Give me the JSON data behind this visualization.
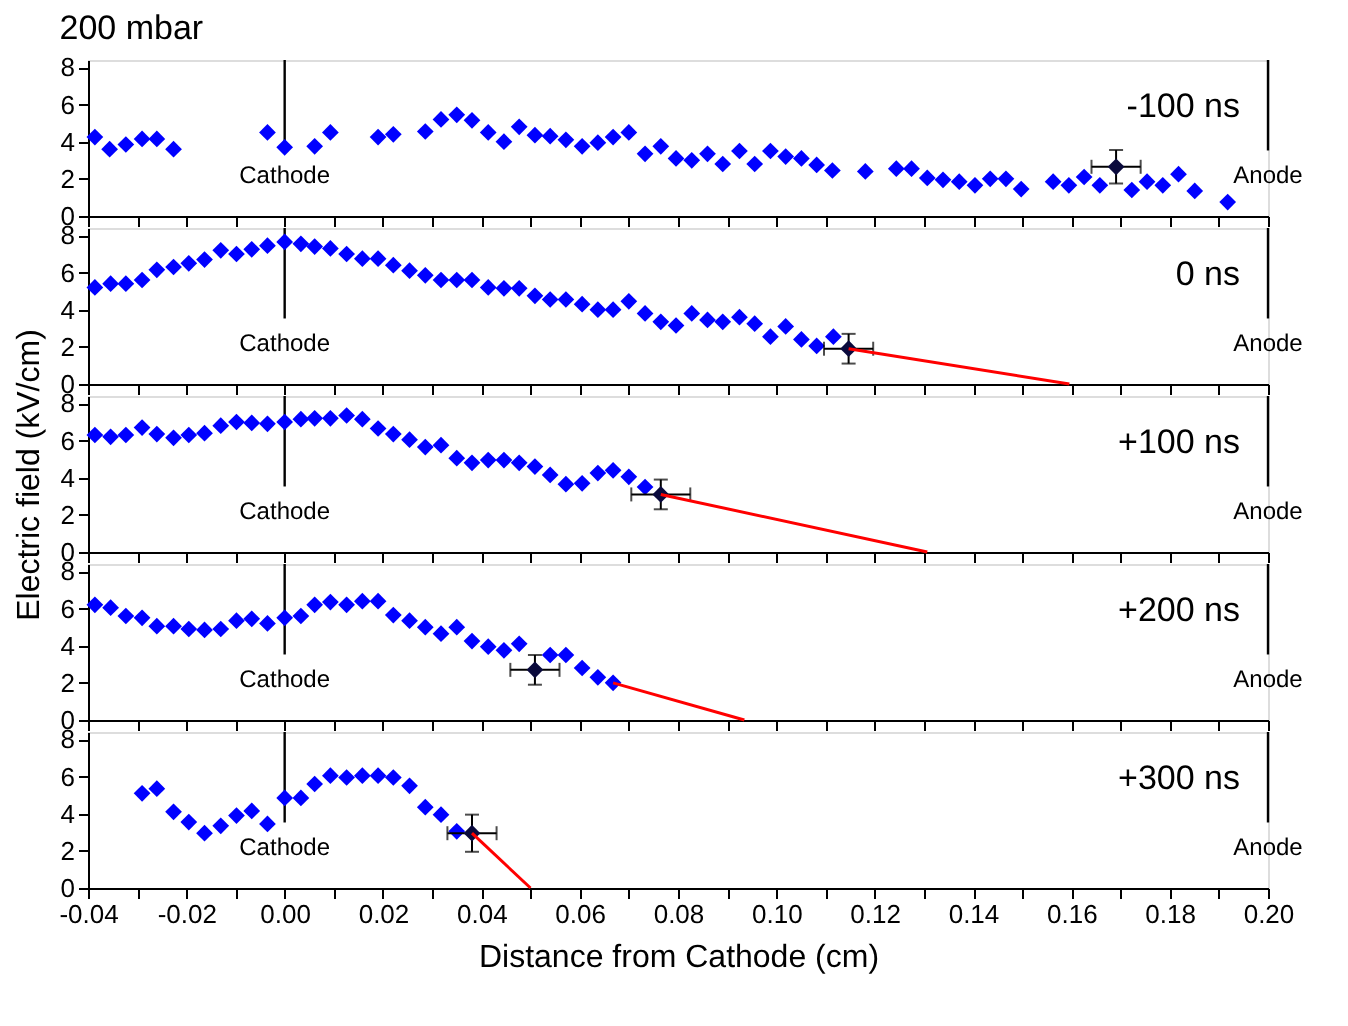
{
  "chart_data": [
    {
      "type": "scatter",
      "title": "200 mbar",
      "annotations": [
        "-100 ns"
      ],
      "tick_labels": "y",
      "xlim": [
        -0.04,
        0.2
      ],
      "ylim": [
        0,
        8.4
      ],
      "yticks": [
        0,
        2,
        4,
        6,
        8
      ],
      "xticks": [
        {
          "value": -0.04,
          "label": null
        },
        {
          "value": -0.03,
          "label": null
        },
        {
          "value": -0.02,
          "label": null
        },
        {
          "value": -0.01,
          "label": null
        },
        {
          "value": 0,
          "label": null
        },
        {
          "value": 0.01,
          "label": null
        },
        {
          "value": 0.02,
          "label": null
        },
        {
          "value": 0.03,
          "label": null
        },
        {
          "value": 0.04,
          "label": null
        },
        {
          "value": 0.05,
          "label": null
        },
        {
          "value": 0.06,
          "label": null
        },
        {
          "value": 0.07,
          "label": null
        },
        {
          "value": 0.08,
          "label": null
        },
        {
          "value": 0.09,
          "label": null
        },
        {
          "value": 0.1,
          "label": null
        },
        {
          "value": 0.11,
          "label": null
        },
        {
          "value": 0.12,
          "label": null
        },
        {
          "value": 0.13,
          "label": null
        },
        {
          "value": 0.14,
          "label": null
        },
        {
          "value": 0.15,
          "label": null
        },
        {
          "value": 0.16,
          "label": null
        },
        {
          "value": 0.17,
          "label": null
        },
        {
          "value": 0.18,
          "label": null
        },
        {
          "value": 0.19,
          "label": null
        },
        {
          "value": 0.2,
          "label": null
        }
      ],
      "ref_lines": [
        {
          "axis": "x",
          "value": 0,
          "label": "Cathode",
          "color": "#000000"
        },
        {
          "axis": "x",
          "value": 0.2,
          "label": "Anode",
          "color": "#000000"
        }
      ],
      "series": [
        {
          "color": "#0000ff",
          "marker": "diamond",
          "x": [
            -0.0386,
            -0.0356,
            -0.0323,
            -0.029,
            -0.026,
            -0.0226,
            -0.0035,
            0.0,
            0.0061,
            0.0093,
            0.019,
            0.0221,
            0.0286,
            0.0318,
            0.035,
            0.0381,
            0.0414,
            0.0446,
            0.0477,
            0.0509,
            0.054,
            0.0572,
            0.0605,
            0.0637,
            0.0668,
            0.07,
            0.0733,
            0.0765,
            0.0796,
            0.0828,
            0.086,
            0.0891,
            0.0925,
            0.0956,
            0.0988,
            0.1019,
            0.1051,
            0.1082,
            0.1114,
            0.1181,
            0.1244,
            0.1275,
            0.1307,
            0.1339,
            0.1372,
            0.1404,
            0.1435,
            0.1467,
            0.1498,
            0.1563,
            0.1595,
            0.1626,
            0.1658,
            0.1723,
            0.1754,
            0.1786,
            0.1818,
            0.1851,
            0.1918
          ],
          "values": [
            4.25,
            3.6,
            3.85,
            4.15,
            4.15,
            3.6,
            4.5,
            3.7,
            3.75,
            4.5,
            4.25,
            4.4,
            4.55,
            5.2,
            5.45,
            5.15,
            4.5,
            4.0,
            4.8,
            4.35,
            4.3,
            4.1,
            3.75,
            3.95,
            4.25,
            4.5,
            3.35,
            3.75,
            3.1,
            3.0,
            3.35,
            2.8,
            3.5,
            2.8,
            3.5,
            3.2,
            3.1,
            2.75,
            2.45,
            2.4,
            2.55,
            2.55,
            2.05,
            1.95,
            1.85,
            1.65,
            2.0,
            2.0,
            1.45,
            1.85,
            1.65,
            2.1,
            1.65,
            1.4,
            1.85,
            1.65,
            2.25,
            1.35,
            0.75
          ]
        },
        {
          "color": "#0a0a3c",
          "marker": "diamond",
          "x": [
            0.1691
          ],
          "values": [
            2.65
          ],
          "errors": [
            0.9
          ],
          "xerrors": [
            0.005
          ]
        }
      ]
    },
    {
      "type": "scatter",
      "annotations": [
        "0 ns"
      ],
      "tick_labels": "y",
      "xlim": [
        -0.04,
        0.2
      ],
      "ylim": [
        0,
        8.4
      ],
      "yticks": [
        0,
        2,
        4,
        6,
        8
      ],
      "xticks": [
        {
          "value": -0.04,
          "label": null
        },
        {
          "value": -0.03,
          "label": null
        },
        {
          "value": -0.02,
          "label": null
        },
        {
          "value": -0.01,
          "label": null
        },
        {
          "value": 0,
          "label": null
        },
        {
          "value": 0.01,
          "label": null
        },
        {
          "value": 0.02,
          "label": null
        },
        {
          "value": 0.03,
          "label": null
        },
        {
          "value": 0.04,
          "label": null
        },
        {
          "value": 0.05,
          "label": null
        },
        {
          "value": 0.06,
          "label": null
        },
        {
          "value": 0.07,
          "label": null
        },
        {
          "value": 0.08,
          "label": null
        },
        {
          "value": 0.09,
          "label": null
        },
        {
          "value": 0.1,
          "label": null
        },
        {
          "value": 0.11,
          "label": null
        },
        {
          "value": 0.12,
          "label": null
        },
        {
          "value": 0.13,
          "label": null
        },
        {
          "value": 0.14,
          "label": null
        },
        {
          "value": 0.15,
          "label": null
        },
        {
          "value": 0.16,
          "label": null
        },
        {
          "value": 0.17,
          "label": null
        },
        {
          "value": 0.18,
          "label": null
        },
        {
          "value": 0.19,
          "label": null
        },
        {
          "value": 0.2,
          "label": null
        }
      ],
      "ref_lines": [
        {
          "axis": "x",
          "value": 0,
          "label": "Cathode",
          "color": "#000000"
        },
        {
          "axis": "x",
          "value": 0.2,
          "label": "Anode",
          "color": "#000000"
        }
      ],
      "series": [
        {
          "color": "#0000ff",
          "marker": "diamond",
          "x": [
            -0.0386,
            -0.0354,
            -0.0323,
            -0.029,
            -0.026,
            -0.0226,
            -0.0195,
            -0.0163,
            -0.013,
            -0.0098,
            -0.0067,
            -0.0035,
            0.0,
            0.0033,
            0.0061,
            0.0093,
            0.0126,
            0.0158,
            0.019,
            0.0221,
            0.0254,
            0.0286,
            0.0318,
            0.035,
            0.0381,
            0.0414,
            0.0446,
            0.0477,
            0.0509,
            0.054,
            0.0572,
            0.0605,
            0.0637,
            0.0668,
            0.07,
            0.0733,
            0.0765,
            0.0796,
            0.0828,
            0.086,
            0.0891,
            0.0925,
            0.0956,
            0.0988,
            0.1019,
            0.1051,
            0.1082,
            0.1116
          ],
          "values": [
            5.2,
            5.4,
            5.4,
            5.6,
            6.15,
            6.3,
            6.5,
            6.7,
            7.2,
            7.0,
            7.25,
            7.45,
            7.65,
            7.55,
            7.4,
            7.3,
            7.0,
            6.75,
            6.75,
            6.4,
            6.1,
            5.85,
            5.6,
            5.6,
            5.6,
            5.2,
            5.15,
            5.15,
            4.75,
            4.55,
            4.55,
            4.3,
            4.0,
            4.0,
            4.45,
            3.8,
            3.35,
            3.15,
            3.8,
            3.45,
            3.35,
            3.6,
            3.25,
            2.55,
            3.1,
            2.4,
            2.05,
            2.55
          ]
        },
        {
          "color": "#0a0a3c",
          "marker": "diamond",
          "x": [
            0.1147
          ],
          "values": [
            1.9
          ],
          "errors": [
            0.8
          ],
          "xerrors": [
            0.005
          ]
        },
        {
          "type": "line",
          "color": "#ff0000",
          "marker": "none",
          "x": [
            0.1147,
            0.1596
          ],
          "values": [
            1.9,
            0
          ]
        }
      ]
    },
    {
      "type": "scatter",
      "ylabel": "Electric field (kV/cm)",
      "annotations": [
        "+100 ns"
      ],
      "tick_labels": "y",
      "xlim": [
        -0.04,
        0.2
      ],
      "ylim": [
        0,
        8.4
      ],
      "yticks": [
        0,
        2,
        4,
        6,
        8
      ],
      "xticks": [
        {
          "value": -0.04,
          "label": null
        },
        {
          "value": -0.03,
          "label": null
        },
        {
          "value": -0.02,
          "label": null
        },
        {
          "value": -0.01,
          "label": null
        },
        {
          "value": 0,
          "label": null
        },
        {
          "value": 0.01,
          "label": null
        },
        {
          "value": 0.02,
          "label": null
        },
        {
          "value": 0.03,
          "label": null
        },
        {
          "value": 0.04,
          "label": null
        },
        {
          "value": 0.05,
          "label": null
        },
        {
          "value": 0.06,
          "label": null
        },
        {
          "value": 0.07,
          "label": null
        },
        {
          "value": 0.08,
          "label": null
        },
        {
          "value": 0.09,
          "label": null
        },
        {
          "value": 0.1,
          "label": null
        },
        {
          "value": 0.11,
          "label": null
        },
        {
          "value": 0.12,
          "label": null
        },
        {
          "value": 0.13,
          "label": null
        },
        {
          "value": 0.14,
          "label": null
        },
        {
          "value": 0.15,
          "label": null
        },
        {
          "value": 0.16,
          "label": null
        },
        {
          "value": 0.17,
          "label": null
        },
        {
          "value": 0.18,
          "label": null
        },
        {
          "value": 0.19,
          "label": null
        },
        {
          "value": 0.2,
          "label": null
        }
      ],
      "ref_lines": [
        {
          "axis": "x",
          "value": 0,
          "label": "Cathode",
          "color": "#000000"
        },
        {
          "axis": "x",
          "value": 0.2,
          "label": "Anode",
          "color": "#000000"
        }
      ],
      "series": [
        {
          "color": "#0000ff",
          "marker": "diamond",
          "x": [
            -0.0386,
            -0.0354,
            -0.0323,
            -0.029,
            -0.026,
            -0.0226,
            -0.0195,
            -0.0163,
            -0.013,
            -0.0098,
            -0.0067,
            -0.0035,
            0.0,
            0.0033,
            0.0061,
            0.0093,
            0.0126,
            0.0158,
            0.019,
            0.0221,
            0.0254,
            0.0286,
            0.0318,
            0.035,
            0.0381,
            0.0414,
            0.0446,
            0.0477,
            0.0509,
            0.054,
            0.0572,
            0.0605,
            0.0637,
            0.0668,
            0.07,
            0.0733
          ],
          "values": [
            6.3,
            6.2,
            6.3,
            6.7,
            6.35,
            6.15,
            6.3,
            6.4,
            6.8,
            7.0,
            6.95,
            6.9,
            7.0,
            7.15,
            7.2,
            7.2,
            7.35,
            7.15,
            6.65,
            6.35,
            6.05,
            5.65,
            5.75,
            5.05,
            4.8,
            4.95,
            4.95,
            4.8,
            4.6,
            4.15,
            3.65,
            3.7,
            4.25,
            4.4,
            4.05,
            3.5
          ]
        },
        {
          "color": "#0a0a3c",
          "marker": "diamond",
          "x": [
            0.0765
          ],
          "values": [
            3.1
          ],
          "errors": [
            0.8
          ],
          "xerrors": [
            0.006
          ]
        },
        {
          "type": "line",
          "color": "#ff0000",
          "marker": "none",
          "x": [
            0.0765,
            0.1307
          ],
          "values": [
            3.1,
            0
          ]
        }
      ]
    },
    {
      "type": "scatter",
      "annotations": [
        "+200 ns"
      ],
      "tick_labels": "y",
      "xlim": [
        -0.04,
        0.2
      ],
      "ylim": [
        0,
        8.4
      ],
      "yticks": [
        0,
        2,
        4,
        6,
        8
      ],
      "xticks": [
        {
          "value": -0.04,
          "label": null
        },
        {
          "value": -0.03,
          "label": null
        },
        {
          "value": -0.02,
          "label": null
        },
        {
          "value": -0.01,
          "label": null
        },
        {
          "value": 0,
          "label": null
        },
        {
          "value": 0.01,
          "label": null
        },
        {
          "value": 0.02,
          "label": null
        },
        {
          "value": 0.03,
          "label": null
        },
        {
          "value": 0.04,
          "label": null
        },
        {
          "value": 0.05,
          "label": null
        },
        {
          "value": 0.06,
          "label": null
        },
        {
          "value": 0.07,
          "label": null
        },
        {
          "value": 0.08,
          "label": null
        },
        {
          "value": 0.09,
          "label": null
        },
        {
          "value": 0.1,
          "label": null
        },
        {
          "value": 0.11,
          "label": null
        },
        {
          "value": 0.12,
          "label": null
        },
        {
          "value": 0.13,
          "label": null
        },
        {
          "value": 0.14,
          "label": null
        },
        {
          "value": 0.15,
          "label": null
        },
        {
          "value": 0.16,
          "label": null
        },
        {
          "value": 0.17,
          "label": null
        },
        {
          "value": 0.18,
          "label": null
        },
        {
          "value": 0.19,
          "label": null
        },
        {
          "value": 0.2,
          "label": null
        }
      ],
      "ref_lines": [
        {
          "axis": "x",
          "value": 0,
          "label": "Cathode",
          "color": "#000000"
        },
        {
          "axis": "x",
          "value": 0.2,
          "label": "Anode",
          "color": "#000000"
        }
      ],
      "series": [
        {
          "color": "#0000ff",
          "marker": "diamond",
          "x": [
            -0.0386,
            -0.0354,
            -0.0323,
            -0.029,
            -0.026,
            -0.0226,
            -0.0195,
            -0.0163,
            -0.013,
            -0.0098,
            -0.0067,
            -0.0035,
            0.0,
            0.0033,
            0.0061,
            0.0093,
            0.0126,
            0.0158,
            0.019,
            0.0221,
            0.0254,
            0.0286,
            0.0318,
            0.035,
            0.0381,
            0.0414,
            0.0446,
            0.0477,
            0.054,
            0.0572,
            0.0605,
            0.0637,
            0.0668
          ],
          "values": [
            6.2,
            6.05,
            5.6,
            5.5,
            5.05,
            5.05,
            4.9,
            4.85,
            4.9,
            5.35,
            5.45,
            5.2,
            5.5,
            5.6,
            6.2,
            6.35,
            6.2,
            6.4,
            6.4,
            5.65,
            5.35,
            5.0,
            4.65,
            5.0,
            4.25,
            3.95,
            3.75,
            4.1,
            3.5,
            3.5,
            2.8,
            2.3,
            2.0
          ]
        },
        {
          "color": "#0a0a3c",
          "marker": "diamond",
          "x": [
            0.0509
          ],
          "values": [
            2.7
          ],
          "errors": [
            0.8
          ],
          "xerrors": [
            0.005
          ]
        },
        {
          "type": "line",
          "color": "#ff0000",
          "marker": "none",
          "x": [
            0.0668,
            0.0935
          ],
          "values": [
            2.0,
            0
          ]
        }
      ]
    },
    {
      "type": "scatter",
      "xlabel": "Distance from  Cathode (cm)",
      "annotations": [
        "+300 ns"
      ],
      "xlim": [
        -0.04,
        0.2
      ],
      "ylim": [
        0,
        8.4
      ],
      "yticks": [
        0,
        2,
        4,
        6,
        8
      ],
      "xticks": [
        {
          "value": -0.04,
          "label": "-0.04"
        },
        {
          "value": -0.03,
          "label": null
        },
        {
          "value": -0.02,
          "label": "-0.02"
        },
        {
          "value": -0.01,
          "label": null
        },
        {
          "value": 0,
          "label": "0.00"
        },
        {
          "value": 0.01,
          "label": null
        },
        {
          "value": 0.02,
          "label": "0.02"
        },
        {
          "value": 0.03,
          "label": null
        },
        {
          "value": 0.04,
          "label": "0.04"
        },
        {
          "value": 0.05,
          "label": null
        },
        {
          "value": 0.06,
          "label": "0.06"
        },
        {
          "value": 0.07,
          "label": null
        },
        {
          "value": 0.08,
          "label": "0.08"
        },
        {
          "value": 0.09,
          "label": null
        },
        {
          "value": 0.1,
          "label": "0.10"
        },
        {
          "value": 0.11,
          "label": null
        },
        {
          "value": 0.12,
          "label": "0.12"
        },
        {
          "value": 0.13,
          "label": null
        },
        {
          "value": 0.14,
          "label": "0.14"
        },
        {
          "value": 0.15,
          "label": null
        },
        {
          "value": 0.16,
          "label": "0.16"
        },
        {
          "value": 0.17,
          "label": null
        },
        {
          "value": 0.18,
          "label": "0.18"
        },
        {
          "value": 0.19,
          "label": null
        },
        {
          "value": 0.2,
          "label": "0.20"
        }
      ],
      "ref_lines": [
        {
          "axis": "x",
          "value": 0,
          "label": "Cathode",
          "color": "#000000"
        },
        {
          "axis": "x",
          "value": 0.2,
          "label": "Anode",
          "color": "#000000"
        }
      ],
      "series": [
        {
          "color": "#0000ff",
          "marker": "diamond",
          "x": [
            -0.029,
            -0.026,
            -0.0226,
            -0.0195,
            -0.0163,
            -0.013,
            -0.0098,
            -0.0067,
            -0.0035,
            0.0,
            0.0033,
            0.0061,
            0.0093,
            0.0126,
            0.0158,
            0.019,
            0.0221,
            0.0254,
            0.0286,
            0.0318,
            0.035
          ],
          "values": [
            5.1,
            5.35,
            4.1,
            3.55,
            2.95,
            3.35,
            3.9,
            4.15,
            3.45,
            4.85,
            4.85,
            5.6,
            6.05,
            5.95,
            6.05,
            6.05,
            5.95,
            5.5,
            4.35,
            3.95,
            3.05
          ]
        },
        {
          "color": "#0a0a3c",
          "marker": "diamond",
          "x": [
            0.0381
          ],
          "values": [
            2.95
          ],
          "errors": [
            1.0
          ],
          "xerrors": [
            0.005
          ]
        },
        {
          "type": "line",
          "color": "#ff0000",
          "marker": "none",
          "x": [
            0.0381,
            0.05
          ],
          "values": [
            2.95,
            0
          ]
        }
      ]
    }
  ]
}
